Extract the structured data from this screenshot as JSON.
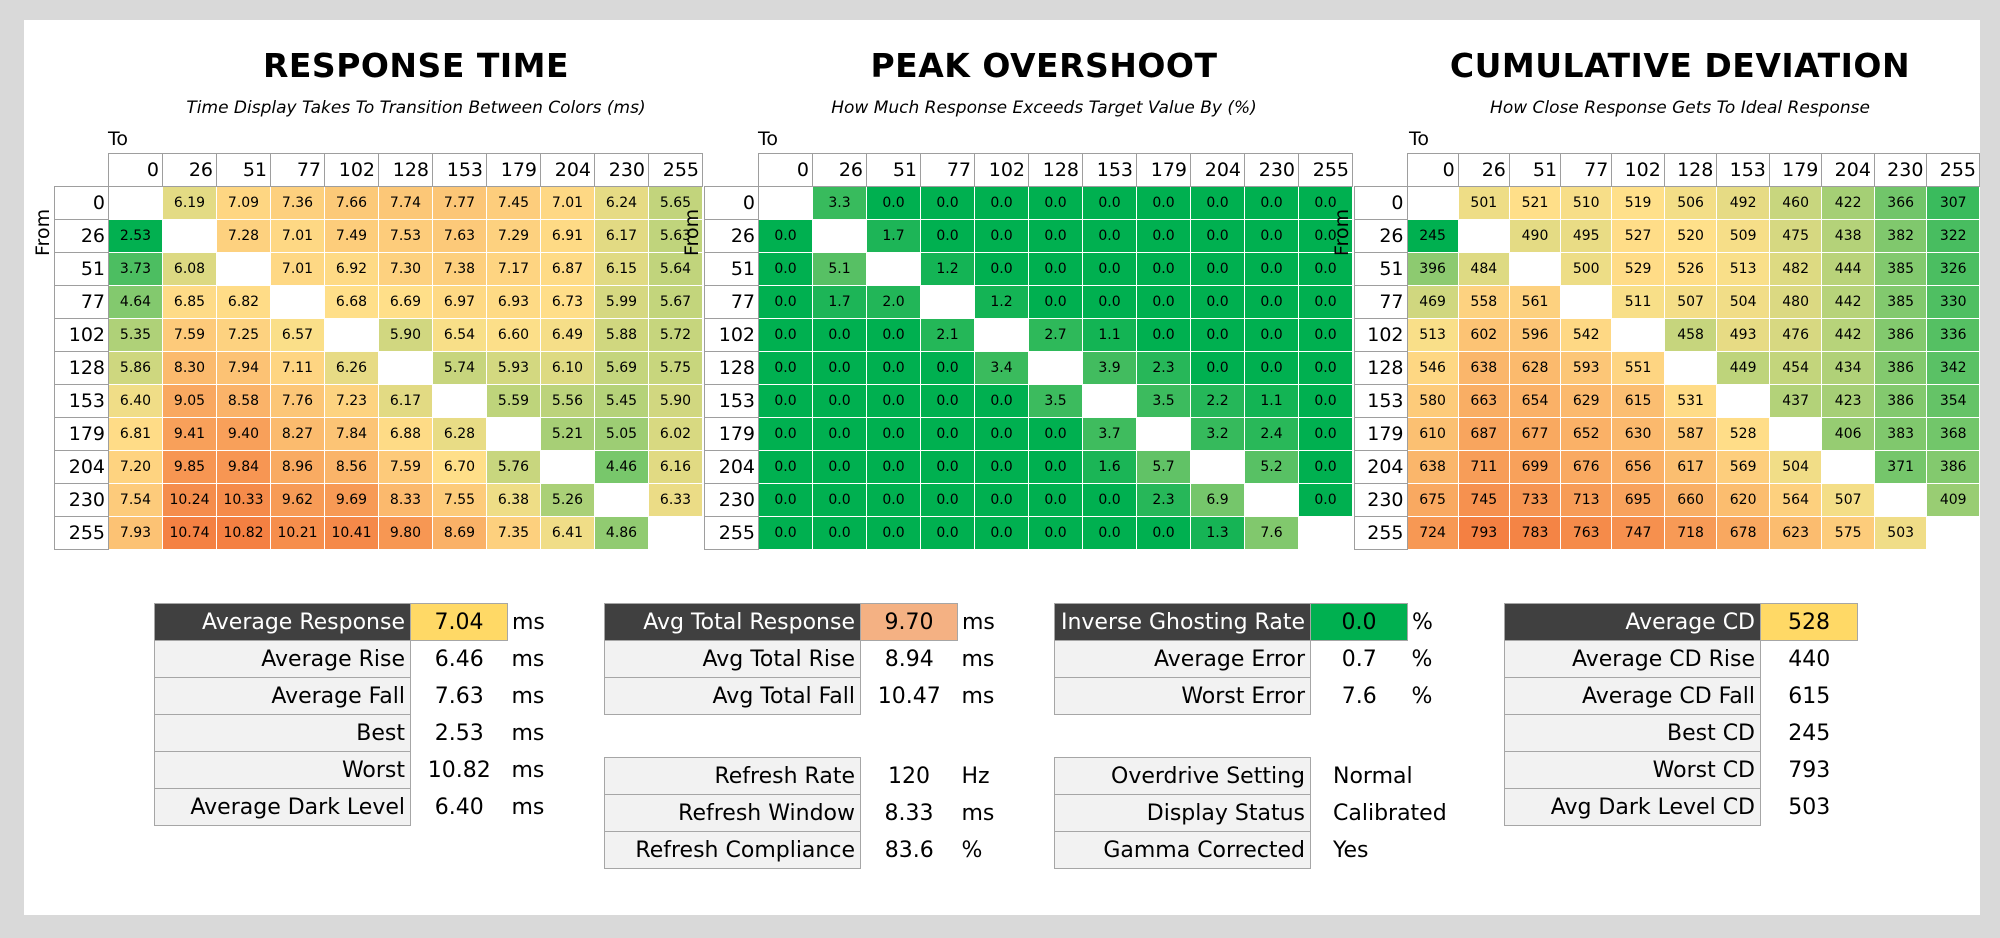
{
  "colors": {
    "green": "#00b050",
    "yellow": "#ffe08a",
    "orange": "#f48042",
    "hl_yellow": "#ffd966",
    "hl_orange": "#f4b183",
    "hl_green": "#00b050",
    "header_dark": "#404040"
  },
  "chart_data": [
    {
      "type": "heatmap",
      "title": "RESPONSE TIME",
      "subtitle": "Time Display Takes To Transition Between Colors (ms)",
      "xlabel": "To",
      "ylabel": "From",
      "x": [
        "0",
        "26",
        "51",
        "77",
        "102",
        "128",
        "153",
        "179",
        "204",
        "230",
        "255"
      ],
      "y": [
        "0",
        "26",
        "51",
        "77",
        "102",
        "128",
        "153",
        "179",
        "204",
        "230",
        "255"
      ],
      "values": [
        [
          null,
          "6.19",
          "7.09",
          "7.36",
          "7.66",
          "7.74",
          "7.77",
          "7.45",
          "7.01",
          "6.24",
          "5.65"
        ],
        [
          "2.53",
          null,
          "7.28",
          "7.01",
          "7.49",
          "7.53",
          "7.63",
          "7.29",
          "6.91",
          "6.17",
          "5.63"
        ],
        [
          "3.73",
          "6.08",
          null,
          "7.01",
          "6.92",
          "7.30",
          "7.38",
          "7.17",
          "6.87",
          "6.15",
          "5.64"
        ],
        [
          "4.64",
          "6.85",
          "6.82",
          null,
          "6.68",
          "6.69",
          "6.97",
          "6.93",
          "6.73",
          "5.99",
          "5.67"
        ],
        [
          "5.35",
          "7.59",
          "7.25",
          "6.57",
          null,
          "5.90",
          "6.54",
          "6.60",
          "6.49",
          "5.88",
          "5.72"
        ],
        [
          "5.86",
          "8.30",
          "7.94",
          "7.11",
          "6.26",
          null,
          "5.74",
          "5.93",
          "6.10",
          "5.69",
          "5.75"
        ],
        [
          "6.40",
          "9.05",
          "8.58",
          "7.76",
          "7.23",
          "6.17",
          null,
          "5.59",
          "5.56",
          "5.45",
          "5.90"
        ],
        [
          "6.81",
          "9.41",
          "9.40",
          "8.27",
          "7.84",
          "6.88",
          "6.28",
          null,
          "5.21",
          "5.05",
          "6.02"
        ],
        [
          "7.20",
          "9.85",
          "9.84",
          "8.96",
          "8.56",
          "7.59",
          "6.70",
          "5.76",
          null,
          "4.46",
          "6.16"
        ],
        [
          "7.54",
          "10.24",
          "10.33",
          "9.62",
          "9.69",
          "8.33",
          "7.55",
          "6.38",
          "5.26",
          null,
          "6.33"
        ],
        [
          "7.93",
          "10.74",
          "10.82",
          "10.21",
          "10.41",
          "9.80",
          "8.69",
          "7.35",
          "6.41",
          "4.86",
          null
        ]
      ]
    },
    {
      "type": "heatmap",
      "title": "PEAK OVERSHOOT",
      "subtitle": "How Much Response Exceeds Target Value By (%)",
      "xlabel": "To",
      "ylabel": "From",
      "x": [
        "0",
        "26",
        "51",
        "77",
        "102",
        "128",
        "153",
        "179",
        "204",
        "230",
        "255"
      ],
      "y": [
        "0",
        "26",
        "51",
        "77",
        "102",
        "128",
        "153",
        "179",
        "204",
        "230",
        "255"
      ],
      "values": [
        [
          null,
          "3.3",
          "0.0",
          "0.0",
          "0.0",
          "0.0",
          "0.0",
          "0.0",
          "0.0",
          "0.0",
          "0.0"
        ],
        [
          "0.0",
          null,
          "1.7",
          "0.0",
          "0.0",
          "0.0",
          "0.0",
          "0.0",
          "0.0",
          "0.0",
          "0.0"
        ],
        [
          "0.0",
          "5.1",
          null,
          "1.2",
          "0.0",
          "0.0",
          "0.0",
          "0.0",
          "0.0",
          "0.0",
          "0.0"
        ],
        [
          "0.0",
          "1.7",
          "2.0",
          null,
          "1.2",
          "0.0",
          "0.0",
          "0.0",
          "0.0",
          "0.0",
          "0.0"
        ],
        [
          "0.0",
          "0.0",
          "0.0",
          "2.1",
          null,
          "2.7",
          "1.1",
          "0.0",
          "0.0",
          "0.0",
          "0.0"
        ],
        [
          "0.0",
          "0.0",
          "0.0",
          "0.0",
          "3.4",
          null,
          "3.9",
          "2.3",
          "0.0",
          "0.0",
          "0.0"
        ],
        [
          "0.0",
          "0.0",
          "0.0",
          "0.0",
          "0.0",
          "3.5",
          null,
          "3.5",
          "2.2",
          "1.1",
          "0.0"
        ],
        [
          "0.0",
          "0.0",
          "0.0",
          "0.0",
          "0.0",
          "0.0",
          "3.7",
          null,
          "3.2",
          "2.4",
          "0.0"
        ],
        [
          "0.0",
          "0.0",
          "0.0",
          "0.0",
          "0.0",
          "0.0",
          "1.6",
          "5.7",
          null,
          "5.2",
          "0.0"
        ],
        [
          "0.0",
          "0.0",
          "0.0",
          "0.0",
          "0.0",
          "0.0",
          "0.0",
          "2.3",
          "6.9",
          null,
          "0.0"
        ],
        [
          "0.0",
          "0.0",
          "0.0",
          "0.0",
          "0.0",
          "0.0",
          "0.0",
          "0.0",
          "1.3",
          "7.6",
          null
        ]
      ]
    },
    {
      "type": "heatmap",
      "title": "CUMULATIVE DEVIATION",
      "subtitle": "How Close Response Gets To Ideal Response",
      "xlabel": "To",
      "ylabel": "From",
      "x": [
        "0",
        "26",
        "51",
        "77",
        "102",
        "128",
        "153",
        "179",
        "204",
        "230",
        "255"
      ],
      "y": [
        "0",
        "26",
        "51",
        "77",
        "102",
        "128",
        "153",
        "179",
        "204",
        "230",
        "255"
      ],
      "values": [
        [
          null,
          "501",
          "521",
          "510",
          "519",
          "506",
          "492",
          "460",
          "422",
          "366",
          "307"
        ],
        [
          "245",
          null,
          "490",
          "495",
          "527",
          "520",
          "509",
          "475",
          "438",
          "382",
          "322"
        ],
        [
          "396",
          "484",
          null,
          "500",
          "529",
          "526",
          "513",
          "482",
          "444",
          "385",
          "326"
        ],
        [
          "469",
          "558",
          "561",
          null,
          "511",
          "507",
          "504",
          "480",
          "442",
          "385",
          "330"
        ],
        [
          "513",
          "602",
          "596",
          "542",
          null,
          "458",
          "493",
          "476",
          "442",
          "386",
          "336"
        ],
        [
          "546",
          "638",
          "628",
          "593",
          "551",
          null,
          "449",
          "454",
          "434",
          "386",
          "342"
        ],
        [
          "580",
          "663",
          "654",
          "629",
          "615",
          "531",
          null,
          "437",
          "423",
          "386",
          "354"
        ],
        [
          "610",
          "687",
          "677",
          "652",
          "630",
          "587",
          "528",
          null,
          "406",
          "383",
          "368"
        ],
        [
          "638",
          "711",
          "699",
          "676",
          "656",
          "617",
          "569",
          "504",
          null,
          "371",
          "386"
        ],
        [
          "675",
          "745",
          "733",
          "713",
          "695",
          "660",
          "620",
          "564",
          "507",
          null,
          "409"
        ],
        [
          "724",
          "793",
          "783",
          "763",
          "747",
          "718",
          "678",
          "623",
          "575",
          "503",
          null
        ]
      ]
    }
  ],
  "stats": {
    "response": [
      {
        "label": "Average Response",
        "value": "7.04",
        "unit": "ms"
      },
      {
        "label": "Average Rise",
        "value": "6.46",
        "unit": "ms"
      },
      {
        "label": "Average Fall",
        "value": "7.63",
        "unit": "ms"
      },
      {
        "label": "Best",
        "value": "2.53",
        "unit": "ms"
      },
      {
        "label": "Worst",
        "value": "10.82",
        "unit": "ms"
      },
      {
        "label": "Average Dark Level",
        "value": "6.40",
        "unit": "ms"
      }
    ],
    "total": [
      {
        "label": "Avg Total Response",
        "value": "9.70",
        "unit": "ms"
      },
      {
        "label": "Avg Total Rise",
        "value": "8.94",
        "unit": "ms"
      },
      {
        "label": "Avg Total Fall",
        "value": "10.47",
        "unit": "ms"
      }
    ],
    "refresh": [
      {
        "label": "Refresh Rate",
        "value": "120",
        "unit": "Hz"
      },
      {
        "label": "Refresh Window",
        "value": "8.33",
        "unit": "ms"
      },
      {
        "label": "Refresh Compliance",
        "value": "83.6",
        "unit": "%"
      }
    ],
    "overshoot": [
      {
        "label": "Inverse Ghosting Rate",
        "value": "0.0",
        "unit": "%"
      },
      {
        "label": "Average Error",
        "value": "0.7",
        "unit": "%"
      },
      {
        "label": "Worst Error",
        "value": "7.6",
        "unit": "%"
      }
    ],
    "settings": [
      {
        "label": "Overdrive Setting",
        "value": "Normal"
      },
      {
        "label": "Display Status",
        "value": "Calibrated"
      },
      {
        "label": "Gamma Corrected",
        "value": "Yes"
      }
    ],
    "cd": [
      {
        "label": "Average CD",
        "value": "528"
      },
      {
        "label": "Average CD Rise",
        "value": "440"
      },
      {
        "label": "Average CD Fall",
        "value": "615"
      },
      {
        "label": "Best CD",
        "value": "245"
      },
      {
        "label": "Worst CD",
        "value": "793"
      },
      {
        "label": "Avg Dark Level CD",
        "value": "503"
      }
    ]
  }
}
